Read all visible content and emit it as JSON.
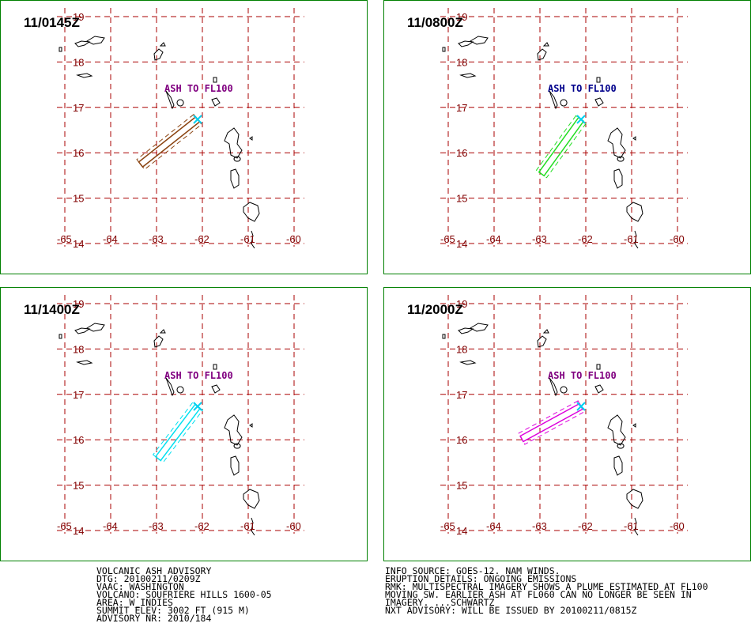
{
  "panels": [
    {
      "time": "11/0145Z",
      "annotation": "ASH TO FL100",
      "annotation_color": "#800080",
      "plume_color": "#8b4513"
    },
    {
      "time": "11/0800Z",
      "annotation": "ASH TO FL100",
      "annotation_color": "#00008b",
      "plume_color": "#22dd22"
    },
    {
      "time": "11/1400Z",
      "annotation": "ASH TO FL100",
      "annotation_color": "#800080",
      "plume_color": "#00e0f0"
    },
    {
      "time": "11/2000Z",
      "annotation": "ASH TO FL100",
      "annotation_color": "#800080",
      "plume_color": "#dd00dd"
    }
  ],
  "lon_labels": [
    "-65",
    "-64",
    "-63",
    "-62",
    "-61",
    "-60"
  ],
  "lat_labels": [
    "19",
    "18",
    "17",
    "16",
    "15",
    "14"
  ],
  "left_text": [
    "VOLCANIC ASH ADVISORY",
    "DTG: 20100211/0209Z",
    "VAAC: WASHINGTON",
    "VOLCANO: SOUFRIERE HILLS 1600-05",
    "AREA: W_INDIES",
    "SUMMIT ELEV: 3002 FT (915 M)",
    "ADVISORY NR: 2010/184"
  ],
  "right_text": [
    "INFO SOURCE: GOES-12. NAM WINDS.",
    "ERUPTION DETAILS: ONGOING EMISSIONS",
    "RMK: MULTISPECTRAL IMAGERY SHOWS A PLUME ESTIMATED AT FL100",
    "MOVING SW. EARLIER ASH AT FL060 CAN NO LONGER BE SEEN IN",
    "IMAGERY. ...SCHWARTZ",
    "NXT ADVISORY: WILL BE ISSUED BY 20100211/0815Z"
  ]
}
